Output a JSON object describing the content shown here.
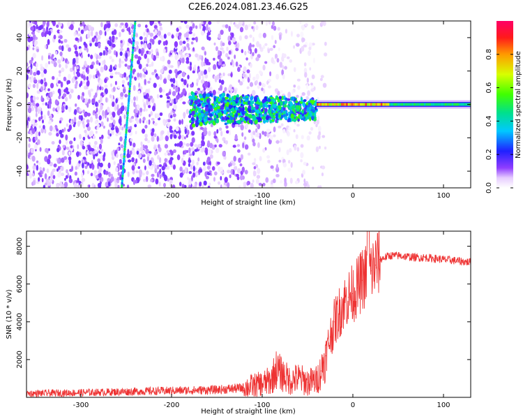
{
  "title": "C2E6.2024.081.23.46.G25",
  "chart_data": [
    {
      "type": "heatmap",
      "name": "spectrogram",
      "xlabel": "Height of straight line (km)",
      "ylabel": "Frequency (Hz)",
      "xlim": [
        -360,
        130
      ],
      "ylim": [
        -50,
        50
      ],
      "xticks": [
        -300,
        -200,
        -100,
        0,
        100
      ],
      "yticks": [
        -40,
        -20,
        0,
        20,
        40
      ],
      "colorbar": {
        "label": "Normalized spectral amplitude",
        "range": [
          0.0,
          1.0
        ],
        "ticks": [
          0.0,
          0.2,
          0.4,
          0.6,
          0.8
        ]
      },
      "features": [
        {
          "name": "noise_floor",
          "x_range": [
            -360,
            -30
          ],
          "freq_range": [
            -50,
            50
          ],
          "amplitude": 0.1
        },
        {
          "name": "slanted_line",
          "x_range": [
            -255,
            -240
          ],
          "freq_range": [
            -50,
            50
          ],
          "amplitude": 0.3
        },
        {
          "name": "turbulent_region",
          "x_range": [
            -180,
            -40
          ],
          "freq_range": [
            -15,
            10
          ],
          "amplitude": 0.3
        },
        {
          "name": "carrier_line",
          "x_range": [
            -40,
            130
          ],
          "freq": 0,
          "amplitude": 0.8
        }
      ]
    },
    {
      "type": "line",
      "name": "snr",
      "xlabel": "Height of straight line (km)",
      "ylabel": "SNR (10 * v/v)",
      "xlim": [
        -360,
        130
      ],
      "ylim": [
        0,
        8800
      ],
      "xticks": [
        -300,
        -200,
        -100,
        0,
        100
      ],
      "yticks": [
        2000,
        4000,
        6000,
        8000
      ],
      "series": [
        {
          "name": "SNR",
          "color": "#ee3333",
          "x": [
            -360,
            -300,
            -250,
            -200,
            -150,
            -120,
            -100,
            -90,
            -85,
            -80,
            -75,
            -70,
            -60,
            -50,
            -40,
            -35,
            -30,
            -25,
            -20,
            -15,
            -10,
            -5,
            0,
            5,
            10,
            15,
            20,
            25,
            30,
            40,
            50,
            60,
            70,
            80,
            90,
            100,
            110,
            120,
            130
          ],
          "y": [
            200,
            250,
            300,
            350,
            400,
            500,
            700,
            900,
            1500,
            1300,
            1100,
            900,
            1000,
            800,
            900,
            1400,
            2200,
            3200,
            4000,
            4500,
            5000,
            5300,
            5500,
            5800,
            6200,
            6500,
            6700,
            7000,
            7300,
            7500,
            7500,
            7450,
            7400,
            7400,
            7350,
            7300,
            7250,
            7200,
            7150
          ]
        }
      ]
    }
  ]
}
